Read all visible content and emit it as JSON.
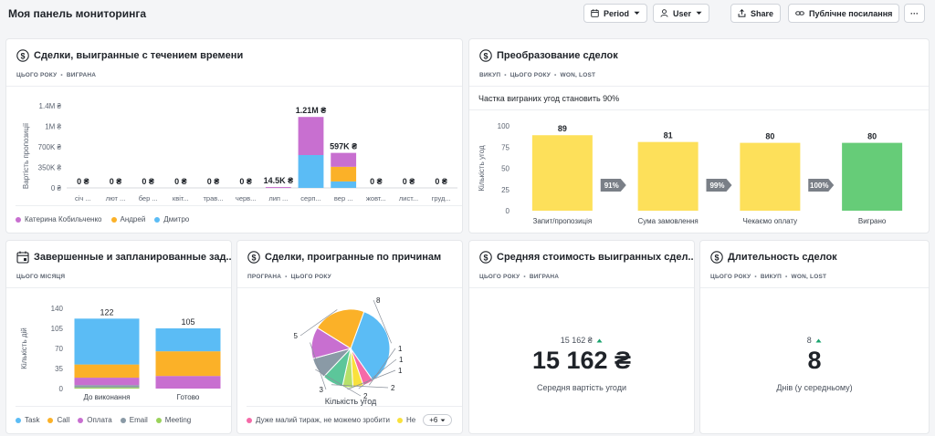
{
  "page": {
    "title": "Моя панель мониторинга",
    "toolbar": {
      "period_label": "Period",
      "user_label": "User",
      "share_label": "Share",
      "public_link_label": "Публічне посилання",
      "more_label": "···"
    }
  },
  "cards": {
    "deals_won": {
      "title": "Сделки, выигранные с течением времени",
      "tags": [
        "ЦЬОГО РОКУ",
        "ВИГРАНА"
      ],
      "legend": [
        {
          "name": "Катерина Кобильченко",
          "color": "#c86fd0"
        },
        {
          "name": "Андрей",
          "color": "#fbb128"
        },
        {
          "name": "Дмитро",
          "color": "#5bbcf5"
        }
      ]
    },
    "conversion": {
      "title": "Преобразование сделок",
      "tags": [
        "ВИКУП",
        "ЦЬОГО РОКУ",
        "WON, LOST"
      ],
      "subtitle": "Частка виграних угод становить 90%"
    },
    "tasks": {
      "title": "Завершенные и запланированные зад...",
      "tags": [
        "ЦЬОГО МІСЯЦЯ"
      ],
      "legend": [
        {
          "name": "Task",
          "color": "#5bbcf5"
        },
        {
          "name": "Call",
          "color": "#fbb128"
        },
        {
          "name": "Оплата",
          "color": "#c86fd0"
        },
        {
          "name": "Email",
          "color": "#8a9aa6"
        },
        {
          "name": "Meeting",
          "color": "#9ad25a"
        }
      ]
    },
    "lost_reasons": {
      "title": "Сделки, проигранные по причинам",
      "tags": [
        "ПРОГРАНА",
        "ЦЬОГО РОКУ"
      ],
      "legend": [
        {
          "name": "Дуже малий тираж, не можемо зробити",
          "color": "#f56aa8"
        },
        {
          "name": "Не",
          "color": "#f9e13c"
        }
      ],
      "more": "+6"
    },
    "avg_value": {
      "title": "Средняя стоимость выигранных сдел...",
      "tags": [
        "ЦЬОГО РОКУ",
        "ВИГРАНА"
      ],
      "prev_value": "15 162 ₴",
      "value": "15 162 ₴",
      "caption": "Середня вартість угоди"
    },
    "duration": {
      "title": "Длительность сделок",
      "tags": [
        "ЦЬОГО РОКУ",
        "ВИКУП",
        "WON, LOST"
      ],
      "prev_value": "8",
      "value": "8",
      "caption": "Днів (у середньому)"
    }
  },
  "colors": {
    "blue": "#5bbcf5",
    "orange": "#fbb128",
    "purple": "#c86fd0",
    "gray": "#8a9aa6",
    "green_light": "#9ad25a",
    "yellow": "#fde05a",
    "green": "#66cc78",
    "pink": "#f56aa8",
    "trend_up": "#1aa36e"
  },
  "chart_data": [
    {
      "id": "deals_won",
      "type": "bar",
      "stacked": true,
      "categories": [
        "січ ...",
        "лют ...",
        "бер ...",
        "квіт...",
        "трав...",
        "черв...",
        "лип ...",
        "серп...",
        "вер ...",
        "жовт...",
        "лист...",
        "груд..."
      ],
      "series": [
        {
          "name": "Дмитро",
          "values": [
            0,
            0,
            0,
            0,
            0,
            0,
            0,
            560000,
            110000,
            0,
            0,
            0
          ]
        },
        {
          "name": "Андрей",
          "values": [
            0,
            0,
            0,
            0,
            0,
            0,
            0,
            0,
            250000,
            0,
            0,
            0
          ]
        },
        {
          "name": "Катерина Кобильченко",
          "values": [
            0,
            0,
            0,
            0,
            0,
            0,
            14500,
            650000,
            237000,
            0,
            0,
            0
          ]
        }
      ],
      "data_labels": [
        "0 ₴",
        "0 ₴",
        "0 ₴",
        "0 ₴",
        "0 ₴",
        "0 ₴",
        "14.5K ₴",
        "1.21M ₴",
        "597K ₴",
        "0 ₴",
        "0 ₴",
        "0 ₴"
      ],
      "ylabel": "Вартість пропозиції",
      "yticks": [
        "0 ₴",
        "350K ₴",
        "700K ₴",
        "1M ₴",
        "1.4M ₴"
      ],
      "ylim": [
        0,
        1400000
      ],
      "legend_position": "bottom"
    },
    {
      "id": "conversion",
      "type": "bar",
      "categories": [
        "Запит/пропозиція",
        "Сума замовлення",
        "Чекаємо оплату",
        "Виграно"
      ],
      "values": [
        89,
        81,
        80,
        80
      ],
      "conversion_rates": [
        "91%",
        "99%",
        "100%"
      ],
      "ylabel": "Кількість угод",
      "yticks": [
        "0",
        "25",
        "50",
        "75",
        "100"
      ],
      "ylim": [
        0,
        100
      ]
    },
    {
      "id": "tasks",
      "type": "bar",
      "stacked": true,
      "categories": [
        "До виконання",
        "Готово"
      ],
      "series": [
        {
          "name": "Meeting",
          "values": [
            2,
            0
          ]
        },
        {
          "name": "Email",
          "values": [
            4,
            0
          ]
        },
        {
          "name": "Оплата",
          "values": [
            13,
            22
          ]
        },
        {
          "name": "Call",
          "values": [
            23,
            43
          ]
        },
        {
          "name": "Task",
          "values": [
            80,
            40
          ]
        }
      ],
      "totals": [
        122,
        105
      ],
      "ylabel": "Кількість дій",
      "yticks": [
        "0",
        "35",
        "70",
        "105",
        "140"
      ],
      "ylim": [
        0,
        140
      ],
      "legend_position": "bottom"
    },
    {
      "id": "lost_reasons",
      "type": "pie",
      "values": [
        8,
        1,
        1,
        1,
        2,
        2,
        3,
        5
      ],
      "labels": [
        "8",
        "1",
        "1",
        "1",
        "2",
        "2",
        "3",
        "5"
      ],
      "colors": [
        "#5bbcf5",
        "#f56aa8",
        "#f9e13c",
        "#b6e06a",
        "#5cc69a",
        "#8a9aa6",
        "#c86fd0",
        "#fbb128"
      ],
      "xlabel": "Кількість угод"
    }
  ]
}
